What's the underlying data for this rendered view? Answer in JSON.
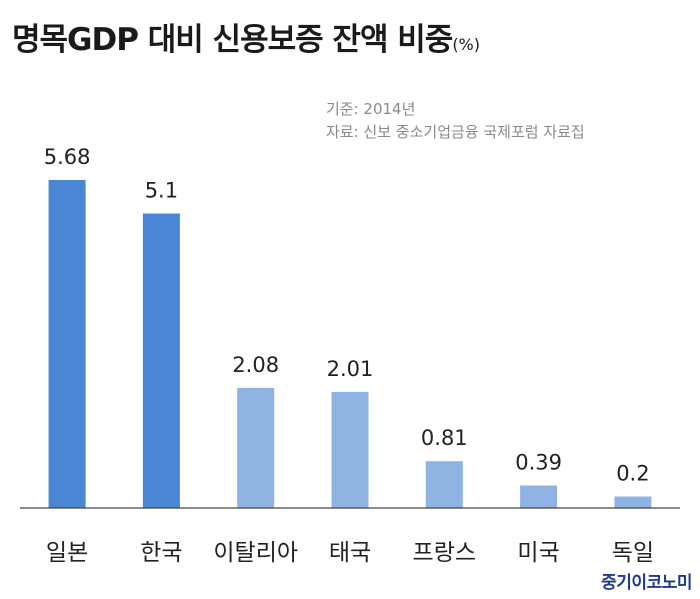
{
  "title": "명목GDP 대비 신용보증 잔액 비중",
  "unit": "(%)",
  "notes": {
    "base": "기준: 2014년",
    "source": "자료: 신보 중소기업금융 국제포럼 자료집"
  },
  "logo": "중기이코노미",
  "colors": {
    "highlight": "#4a86d4",
    "normal": "#8fb4e3",
    "axis": "#444444"
  },
  "chart_data": {
    "type": "bar",
    "categories": [
      "일본",
      "한국",
      "이탈리아",
      "태국",
      "프랑스",
      "미국",
      "독일"
    ],
    "values": [
      5.68,
      5.1,
      2.08,
      2.01,
      0.81,
      0.39,
      0.2
    ],
    "value_labels": [
      "5.68",
      "5.1",
      "2.08",
      "2.01",
      "0.81",
      "0.39",
      "0.2"
    ],
    "highlighted": [
      true,
      true,
      false,
      false,
      false,
      false,
      false
    ],
    "ylim": [
      0,
      6.2
    ],
    "grid": false,
    "legend": "none"
  }
}
